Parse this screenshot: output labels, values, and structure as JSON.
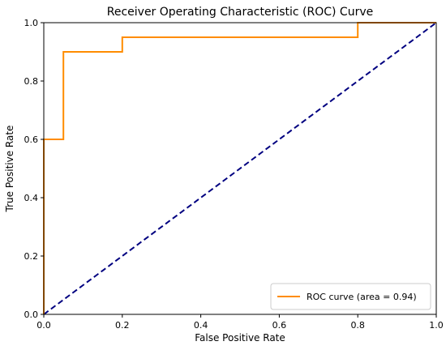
{
  "chart_data": {
    "type": "line",
    "title": "Receiver Operating Characteristic (ROC) Curve",
    "xlabel": "False Positive Rate",
    "ylabel": "True Positive Rate",
    "xlim": [
      0,
      1
    ],
    "ylim": [
      0,
      1
    ],
    "x_ticks": [
      "0.0",
      "0.2",
      "0.4",
      "0.6",
      "0.8",
      "1.0"
    ],
    "y_ticks": [
      "0.0",
      "0.2",
      "0.4",
      "0.6",
      "0.8",
      "1.0"
    ],
    "grid": false,
    "legend_position": "lower-right",
    "series": [
      {
        "name": "ROC curve (area = 0.94)",
        "color": "#ff8c00",
        "style": "solid",
        "step": true,
        "x": [
          0.0,
          0.0,
          0.05,
          0.05,
          0.2,
          0.2,
          0.8,
          0.8,
          1.0
        ],
        "y": [
          0.0,
          0.6,
          0.6,
          0.9,
          0.9,
          0.95,
          0.95,
          1.0,
          1.0
        ]
      },
      {
        "color": "#000080",
        "style": "dashed",
        "x": [
          0.0,
          1.0
        ],
        "y": [
          0.0,
          1.0
        ]
      }
    ]
  }
}
